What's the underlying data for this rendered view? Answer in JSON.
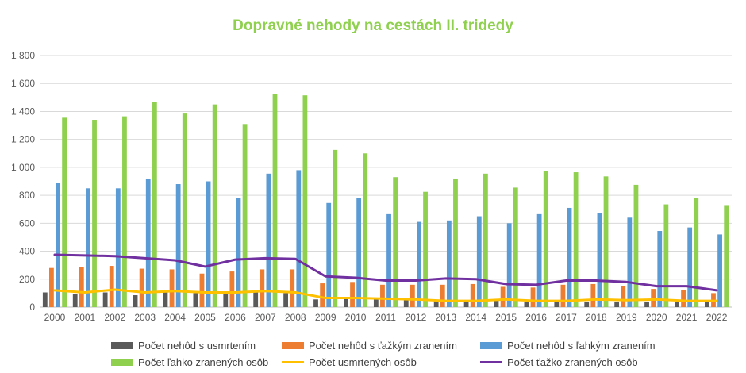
{
  "chart_data": {
    "type": "bar",
    "title": "Dopravné nehody na cestách II. tridedy",
    "categories": [
      "2000",
      "2001",
      "2002",
      "2003",
      "2004",
      "2005",
      "2006",
      "2007",
      "2008",
      "2009",
      "2010",
      "2011",
      "2012",
      "2013",
      "2014",
      "2015",
      "2016",
      "2017",
      "2018",
      "2019",
      "2020",
      "2021",
      "2022"
    ],
    "ylim": [
      0,
      1800
    ],
    "yticks": [
      0,
      200,
      400,
      600,
      800,
      1000,
      1200,
      1400,
      1600,
      1800
    ],
    "ytick_labels": [
      "0",
      "200",
      "400",
      "600",
      "800",
      "1 000",
      "1 200",
      "1 400",
      "1 600",
      "1 800"
    ],
    "grid": true,
    "legend_position": "bottom",
    "series": [
      {
        "name": "Počet nehôd s usmrtením",
        "kind": "bar",
        "color": "#5a5a5a",
        "values": [
          105,
          95,
          105,
          85,
          110,
          100,
          95,
          105,
          100,
          55,
          60,
          55,
          50,
          45,
          45,
          45,
          40,
          45,
          40,
          40,
          40,
          40,
          40
        ]
      },
      {
        "name": "Počet nehôd s ťažkým zranením",
        "kind": "bar",
        "color": "#ed7d31",
        "values": [
          280,
          285,
          295,
          275,
          270,
          240,
          255,
          270,
          270,
          170,
          180,
          160,
          160,
          160,
          165,
          145,
          140,
          160,
          165,
          150,
          130,
          125,
          100
        ]
      },
      {
        "name": "Počet nehôd s ľahkým zranením",
        "kind": "bar",
        "color": "#5b9bd5",
        "values": [
          890,
          850,
          850,
          920,
          880,
          900,
          780,
          955,
          980,
          745,
          780,
          665,
          610,
          620,
          650,
          600,
          665,
          710,
          670,
          640,
          545,
          570,
          520
        ]
      },
      {
        "name": "Počet ľahko zranených osôb",
        "kind": "bar",
        "color": "#8fd14f",
        "values": [
          1355,
          1340,
          1365,
          1465,
          1385,
          1450,
          1310,
          1525,
          1515,
          1125,
          1100,
          930,
          825,
          920,
          955,
          855,
          975,
          965,
          935,
          875,
          735,
          780,
          730
        ]
      },
      {
        "name": "Počet usmrtených osôb",
        "kind": "line",
        "color": "#ffc000",
        "values": [
          120,
          105,
          125,
          105,
          115,
          105,
          105,
          115,
          105,
          65,
          65,
          60,
          55,
          45,
          45,
          55,
          45,
          45,
          55,
          50,
          55,
          45,
          45
        ]
      },
      {
        "name": "Počet ťažko zranených osôb",
        "kind": "line",
        "color": "#7030a0",
        "values": [
          375,
          370,
          365,
          350,
          335,
          290,
          340,
          350,
          345,
          220,
          210,
          190,
          190,
          205,
          200,
          165,
          160,
          190,
          190,
          180,
          150,
          150,
          120
        ]
      }
    ]
  },
  "title_color": "#8fd14f"
}
